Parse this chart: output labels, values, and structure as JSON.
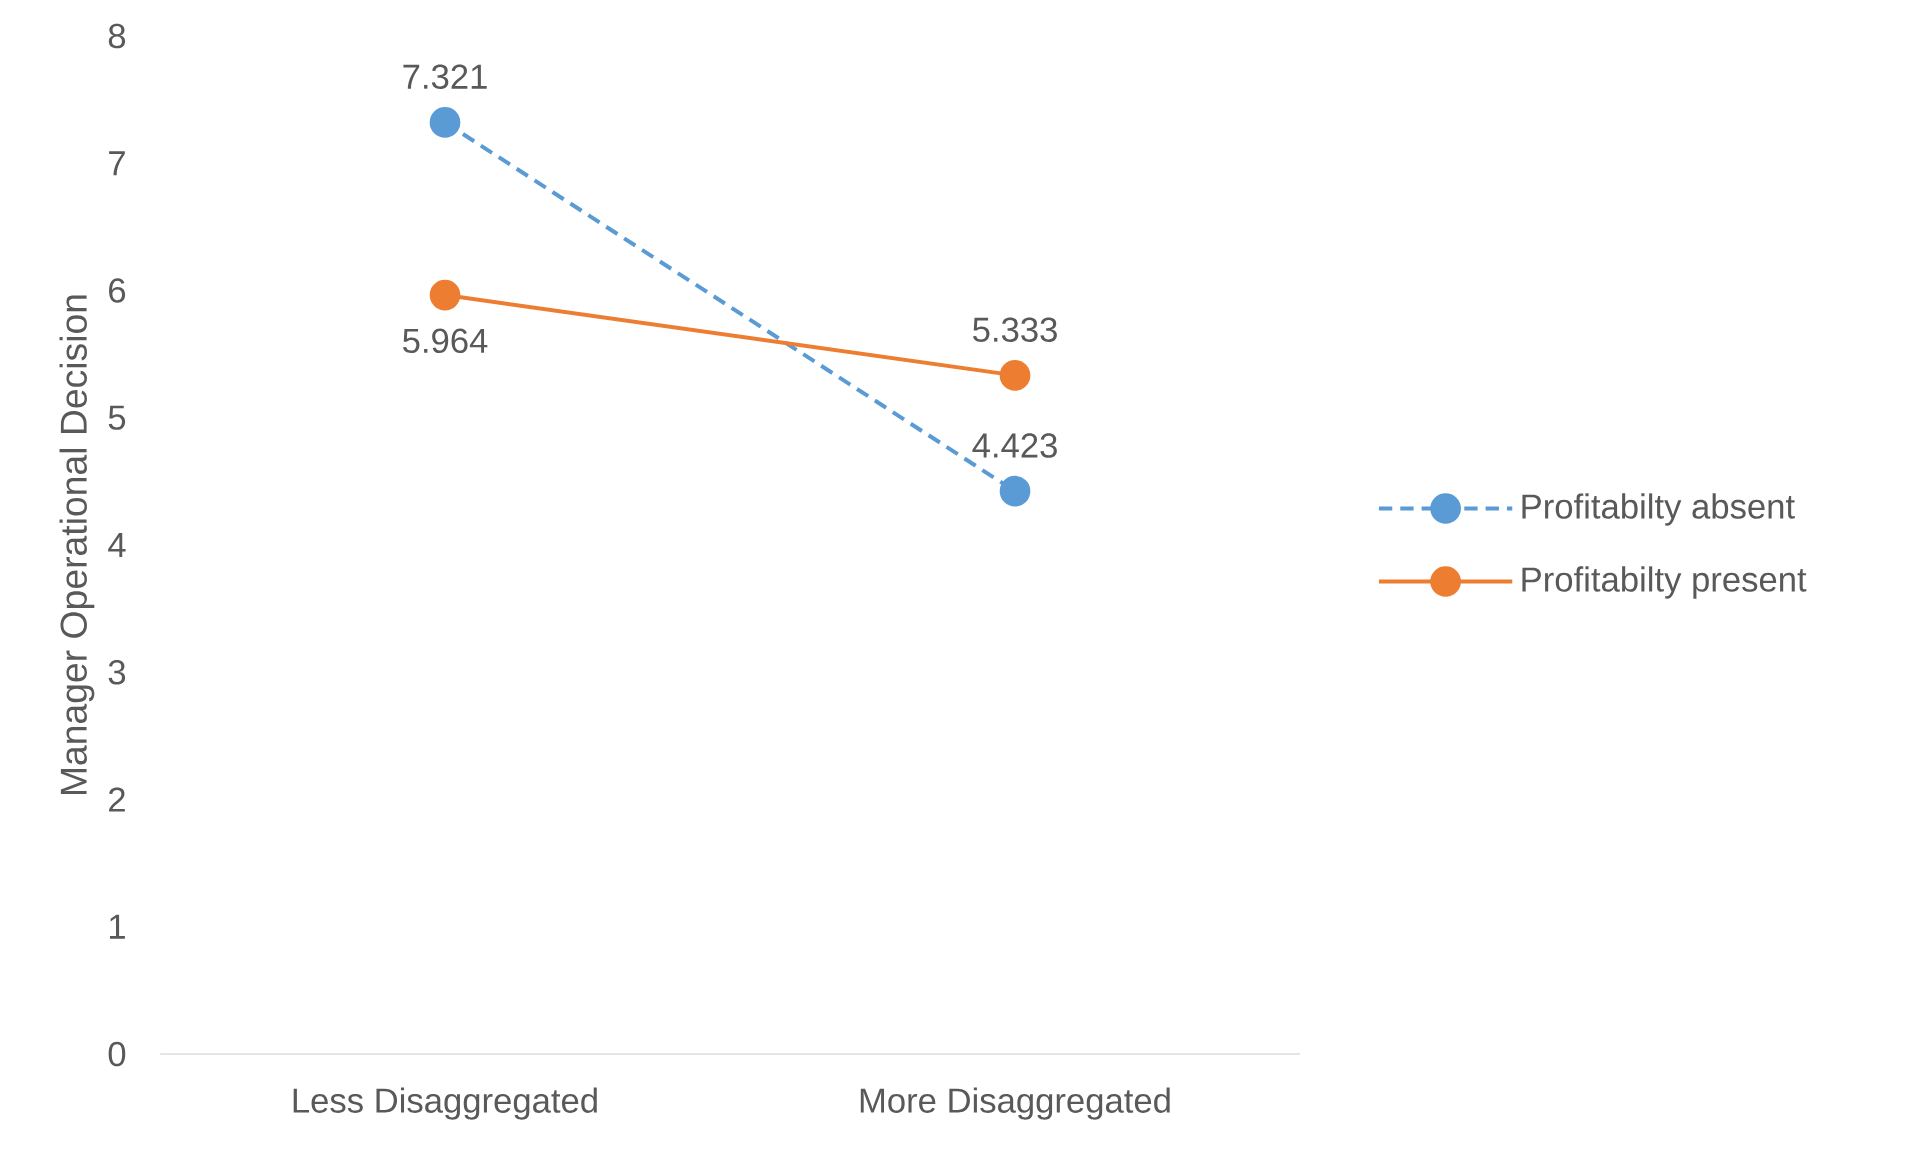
{
  "chart_data": {
    "type": "line",
    "ylabel": "Manager Operational Decision",
    "categories": [
      "Less Disaggregated",
      "More Disaggregated"
    ],
    "series": [
      {
        "name": "Profitabilty absent",
        "color": "#5b9bd5",
        "values": [
          7.321,
          4.423
        ],
        "line_style": "dashed"
      },
      {
        "name": "Profitabilty present",
        "color": "#ed7d31",
        "values": [
          5.964,
          5.333
        ],
        "line_style": "solid"
      }
    ],
    "ylim": [
      0,
      8
    ],
    "yticks": [
      0,
      1,
      2,
      3,
      4,
      5,
      6,
      7,
      8
    ],
    "grid": false,
    "legend": "right",
    "marker": "circle",
    "data_labels": true
  }
}
